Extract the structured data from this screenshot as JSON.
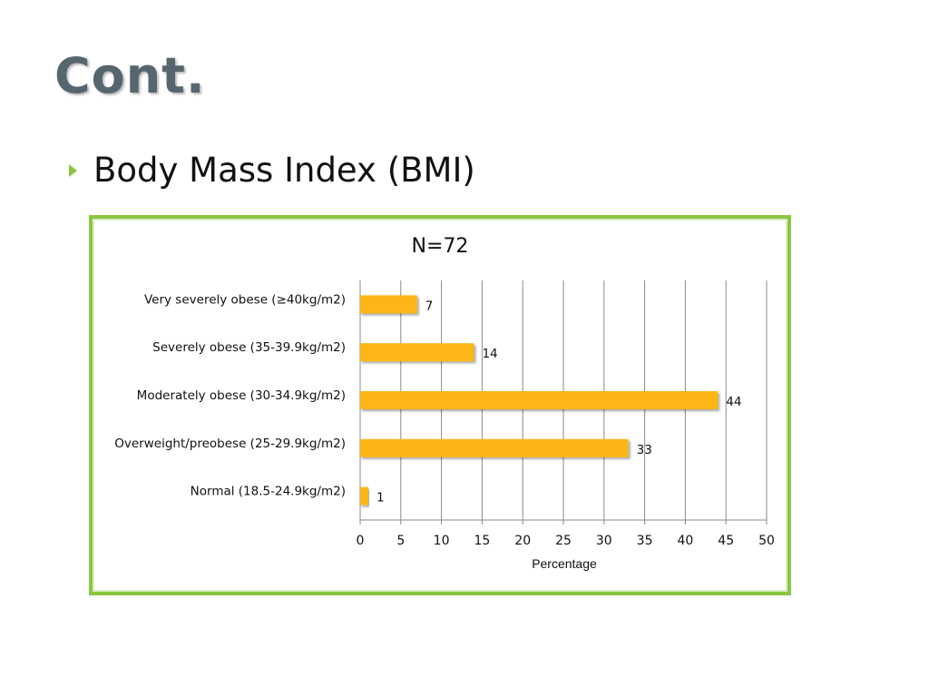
{
  "slide": {
    "title": "Cont.",
    "bullet": "Body Mass Index (BMI)"
  },
  "colors": {
    "accent": "#8cc63f",
    "bar": "#fcb614",
    "title": "#56666f"
  },
  "chart_data": {
    "type": "bar",
    "orientation": "horizontal",
    "title": "N=72",
    "xlabel": "Percentage",
    "ylabel": "",
    "categories": [
      "Very severely obese (≥40kg/m2)",
      "Severely obese (35-39.9kg/m2)",
      "Moderately obese (30-34.9kg/m2)",
      "Overweight/preobese (25-29.9kg/m2)",
      "Normal (18.5-24.9kg/m2)"
    ],
    "values": [
      7,
      14,
      44,
      33,
      1
    ],
    "xlim": [
      0,
      50
    ],
    "xticks": [
      0,
      5,
      10,
      15,
      20,
      25,
      30,
      35,
      40,
      45,
      50
    ],
    "grid": "vertical",
    "legend": "none"
  }
}
